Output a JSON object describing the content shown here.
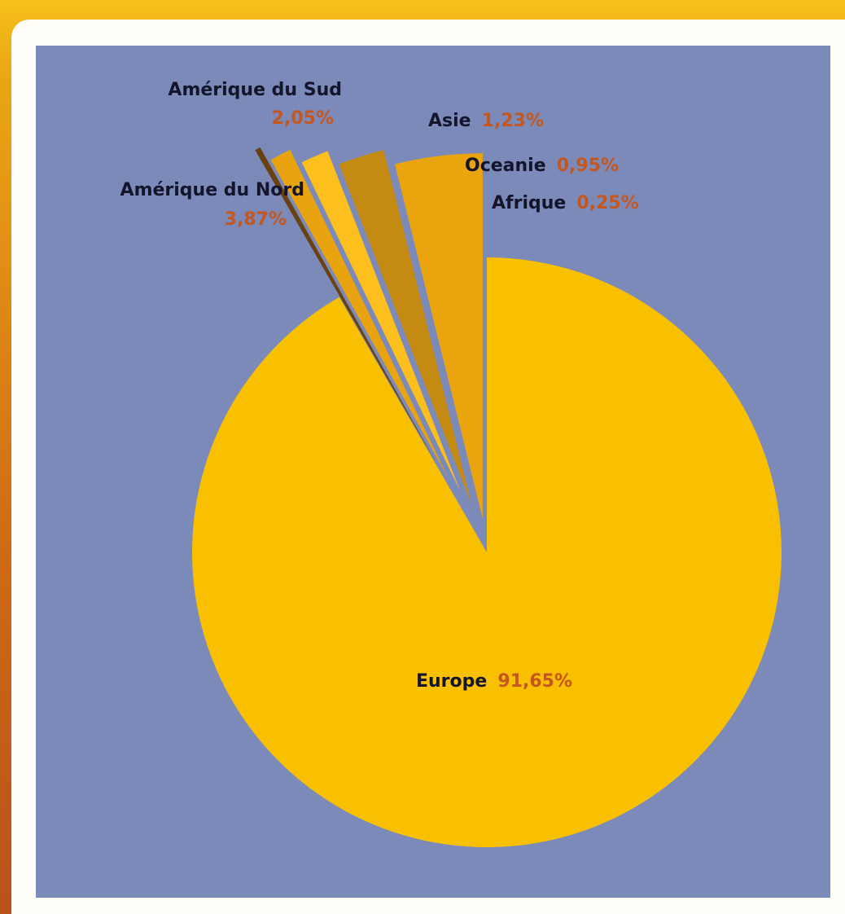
{
  "chart_data": {
    "type": "pie",
    "legend": "none",
    "slices": [
      {
        "name": "Europe",
        "value": 91.65,
        "label": "91,65%",
        "color": "#f9c001",
        "exploded": false
      },
      {
        "name": "Amérique du Nord",
        "value": 3.87,
        "label": "3,87%",
        "color": "#eaa40d",
        "exploded": true
      },
      {
        "name": "Amérique du Sud",
        "value": 2.05,
        "label": "2,05%",
        "color": "#c48a12",
        "exploded": true
      },
      {
        "name": "Asie",
        "value": 1.23,
        "label": "1,23%",
        "color": "#fcbf1e",
        "exploded": true
      },
      {
        "name": "Oceanie",
        "value": 0.95,
        "label": "0,95%",
        "color": "#e9a30f",
        "exploded": true
      },
      {
        "name": "Afrique",
        "value": 0.25,
        "label": "0,25%",
        "color": "#6a4212",
        "exploded": true
      }
    ]
  }
}
